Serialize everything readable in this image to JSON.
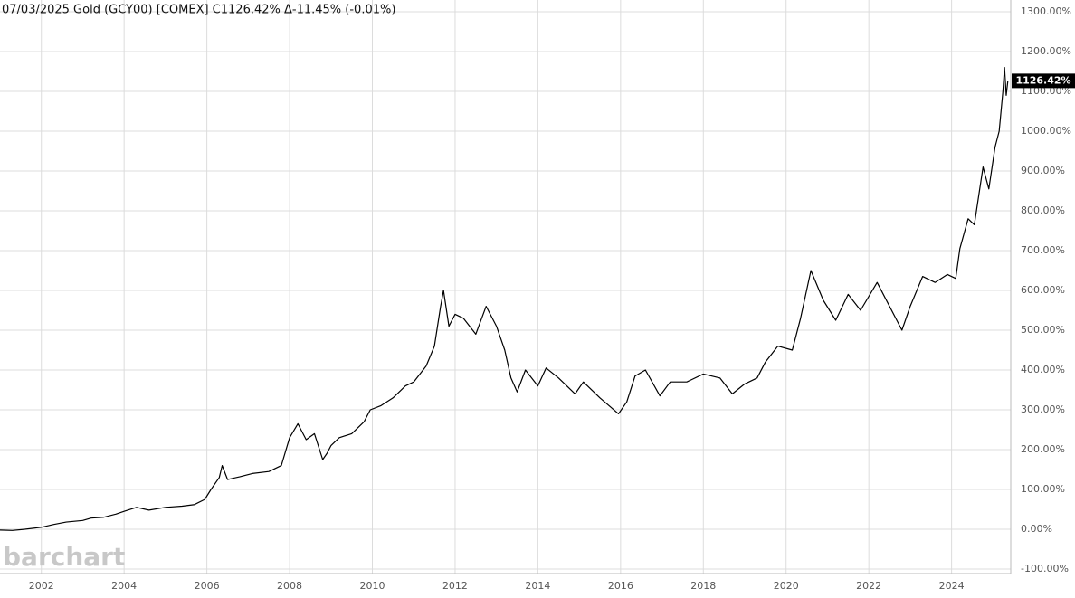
{
  "chart_data": {
    "type": "line",
    "title": "07/03/2025 Gold (GCY00) [COMEX] C1126.42% Δ-11.45% (-0.01%)",
    "watermark": "barchart",
    "current": {
      "value": 1126.42,
      "label": "1126.42%"
    },
    "x": [
      2001.0,
      2001.3,
      2001.6,
      2002.0,
      2002.3,
      2002.6,
      2003.0,
      2003.2,
      2003.5,
      2003.8,
      2004.0,
      2004.3,
      2004.6,
      2005.0,
      2005.4,
      2005.7,
      2005.95,
      2006.1,
      2006.3,
      2006.37,
      2006.5,
      2006.8,
      2007.1,
      2007.5,
      2007.8,
      2008.0,
      2008.2,
      2008.4,
      2008.6,
      2008.8,
      2008.9,
      2009.0,
      2009.2,
      2009.5,
      2009.8,
      2009.95,
      2010.2,
      2010.5,
      2010.8,
      2011.0,
      2011.3,
      2011.5,
      2011.65,
      2011.72,
      2011.85,
      2012.0,
      2012.2,
      2012.5,
      2012.75,
      2013.0,
      2013.2,
      2013.35,
      2013.5,
      2013.7,
      2014.0,
      2014.2,
      2014.5,
      2014.9,
      2015.1,
      2015.5,
      2015.95,
      2016.15,
      2016.35,
      2016.6,
      2016.95,
      2017.2,
      2017.6,
      2018.0,
      2018.4,
      2018.7,
      2019.0,
      2019.3,
      2019.5,
      2019.8,
      2020.15,
      2020.35,
      2020.6,
      2020.9,
      2021.2,
      2021.5,
      2021.8,
      2022.2,
      2022.45,
      2022.8,
      2023.0,
      2023.3,
      2023.6,
      2023.9,
      2024.1,
      2024.2,
      2024.4,
      2024.55,
      2024.76,
      2024.9,
      2025.05,
      2025.15,
      2025.24,
      2025.28,
      2025.32,
      2025.36
    ],
    "series": [
      {
        "name": "Gold (GCY00)",
        "color": "#000000",
        "values": [
          -2,
          -3,
          0,
          5,
          12,
          18,
          22,
          28,
          30,
          38,
          45,
          55,
          48,
          55,
          58,
          62,
          75,
          100,
          130,
          160,
          125,
          132,
          140,
          145,
          160,
          230,
          265,
          225,
          240,
          175,
          190,
          210,
          230,
          240,
          270,
          300,
          310,
          330,
          360,
          370,
          410,
          460,
          560,
          600,
          510,
          540,
          530,
          490,
          560,
          510,
          450,
          380,
          345,
          400,
          360,
          405,
          380,
          340,
          370,
          330,
          290,
          320,
          385,
          400,
          335,
          370,
          370,
          390,
          380,
          340,
          365,
          380,
          420,
          460,
          450,
          530,
          650,
          575,
          525,
          590,
          550,
          620,
          570,
          500,
          560,
          635,
          620,
          640,
          630,
          705,
          780,
          765,
          910,
          855,
          960,
          1000,
          1100,
          1160,
          1090,
          1126.42
        ]
      }
    ],
    "xlim": [
      2001.0,
      2025.43
    ],
    "xticks": [
      2002,
      2004,
      2006,
      2008,
      2010,
      2012,
      2014,
      2016,
      2018,
      2020,
      2022,
      2024
    ],
    "ylim": [
      -100,
      1300
    ],
    "yticks": [
      {
        "value": -100,
        "label": "-100.00%"
      },
      {
        "value": 0,
        "label": "0.00%"
      },
      {
        "value": 100,
        "label": "100.00%"
      },
      {
        "value": 200,
        "label": "200.00%"
      },
      {
        "value": 300,
        "label": "300.00%"
      },
      {
        "value": 400,
        "label": "400.00%"
      },
      {
        "value": 500,
        "label": "500.00%"
      },
      {
        "value": 600,
        "label": "600.00%"
      },
      {
        "value": 700,
        "label": "700.00%"
      },
      {
        "value": 800,
        "label": "800.00%"
      },
      {
        "value": 900,
        "label": "900.00%"
      },
      {
        "value": 1000,
        "label": "1000.00%"
      },
      {
        "value": 1100,
        "label": "1100.00%"
      },
      {
        "value": 1200,
        "label": "1200.00%"
      },
      {
        "value": 1300,
        "label": "1300.00%"
      }
    ],
    "grid": true
  }
}
